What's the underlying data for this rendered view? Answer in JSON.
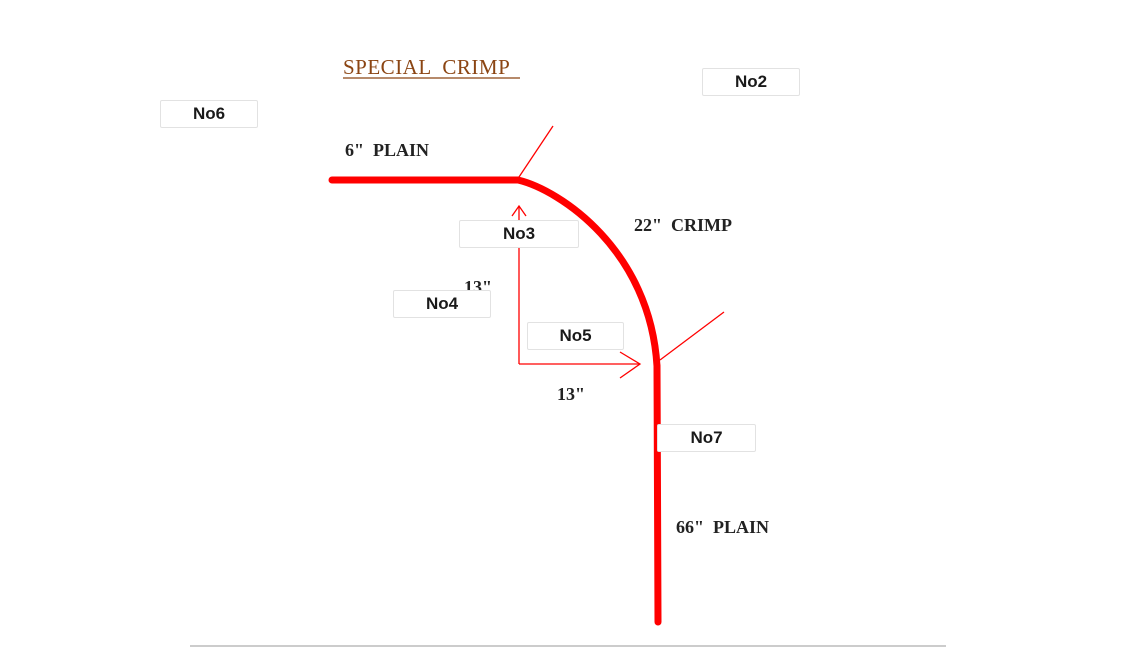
{
  "title": "SPECIAL  CRIMP",
  "labels": {
    "top_plain": "6\"  PLAIN",
    "crimp": "22\"  CRIMP",
    "vertical_dim": "13\"",
    "horizontal_dim": "13\"",
    "bottom_plain": "66\"  PLAIN"
  },
  "callouts": {
    "no2": "No2",
    "no3": "No3",
    "no4": "No4",
    "no5": "No5",
    "no6": "No6",
    "no7": "No7"
  },
  "colors": {
    "pipe": "#ff0000",
    "dimension_lines": "#ff0000",
    "title": "#8b4513",
    "text": "#222222",
    "divider": "#bbbbbb"
  }
}
